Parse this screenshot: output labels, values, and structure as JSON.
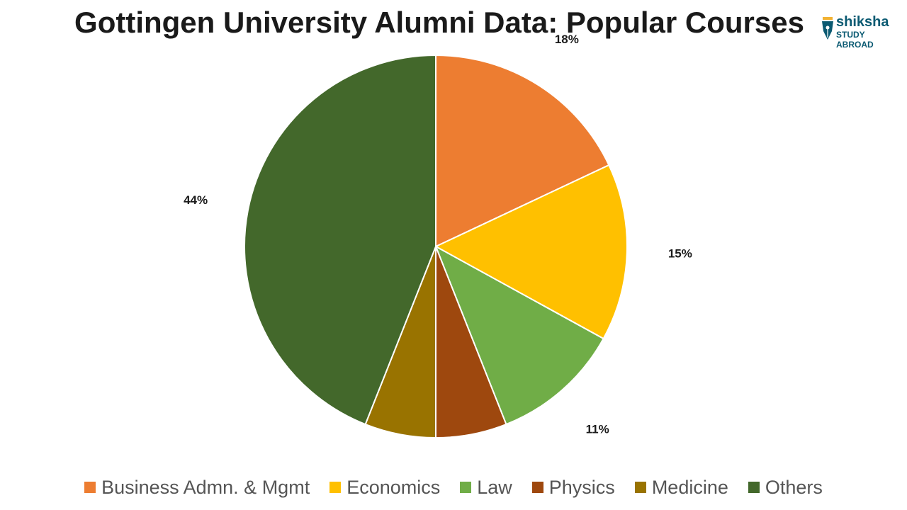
{
  "chart_data": {
    "type": "pie",
    "title": "Gottingen University Alumni Data: Popular Courses",
    "legend_position": "bottom",
    "start_angle_deg": 0,
    "direction": "clockwise",
    "slices": [
      {
        "name": "Business Admn. & Mgmt",
        "value": 18,
        "label": "18%",
        "color": "#ED7D31"
      },
      {
        "name": "Economics",
        "value": 15,
        "label": "15%",
        "color": "#FFC000"
      },
      {
        "name": "Law",
        "value": 11,
        "label": "11%",
        "color": "#70AD47"
      },
      {
        "name": "Physics",
        "value": 6,
        "label": "6%",
        "color": "#9E480E"
      },
      {
        "name": "Medicine",
        "value": 6,
        "label": "6%",
        "color": "#997300"
      },
      {
        "name": "Others",
        "value": 44,
        "label": "44%",
        "color": "#43682B"
      }
    ]
  },
  "logo": {
    "brand": "shiksha",
    "tagline": "STUDY ABROAD",
    "color": "#0b5a72",
    "icon": "pen-nib-icon"
  }
}
